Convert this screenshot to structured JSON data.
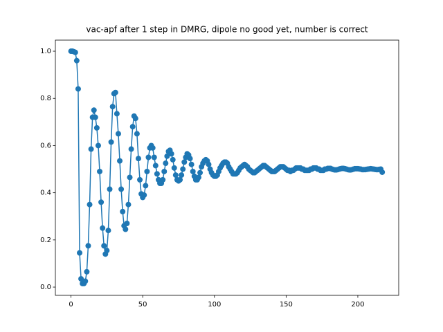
{
  "chart_data": {
    "type": "line",
    "title": "vac-apf after 1 step in DMRG, dipole no good yet, number is correct",
    "x": [
      0,
      1,
      2,
      3,
      4,
      5,
      6,
      7,
      8,
      9,
      10,
      11,
      12,
      13,
      14,
      15,
      16,
      17,
      18,
      19,
      20,
      21,
      22,
      23,
      24,
      25,
      26,
      27,
      28,
      29,
      30,
      31,
      32,
      33,
      34,
      35,
      36,
      37,
      38,
      39,
      40,
      41,
      42,
      43,
      44,
      45,
      46,
      47,
      48,
      49,
      50,
      51,
      52,
      53,
      54,
      55,
      56,
      57,
      58,
      59,
      60,
      61,
      62,
      63,
      64,
      65,
      66,
      67,
      68,
      69,
      70,
      71,
      72,
      73,
      74,
      75,
      76,
      77,
      78,
      79,
      80,
      81,
      82,
      83,
      84,
      85,
      86,
      87,
      88,
      89,
      90,
      91,
      92,
      93,
      94,
      95,
      96,
      97,
      98,
      99,
      100,
      101,
      102,
      103,
      104,
      105,
      106,
      107,
      108,
      109,
      110,
      111,
      112,
      113,
      114,
      115,
      116,
      117,
      118,
      119,
      120,
      121,
      122,
      123,
      124,
      125,
      126,
      127,
      128,
      129,
      130,
      131,
      132,
      133,
      134,
      135,
      136,
      137,
      138,
      139,
      140,
      141,
      142,
      143,
      144,
      145,
      146,
      147,
      148,
      149,
      150,
      151,
      152,
      153,
      154,
      155,
      156,
      157,
      158,
      159,
      160,
      161,
      162,
      163,
      164,
      165,
      166,
      167,
      168,
      169,
      170,
      171,
      172,
      173,
      174,
      175,
      176,
      177,
      178,
      179,
      180,
      181,
      182,
      183,
      184,
      185,
      186,
      187,
      188,
      189,
      190,
      191,
      192,
      193,
      194,
      195,
      196,
      197,
      198,
      199,
      200,
      201,
      202,
      203,
      204,
      205,
      206,
      207,
      208,
      209,
      210,
      211,
      212,
      213,
      214,
      215,
      216,
      217
    ],
    "values": [
      1.0,
      1.0,
      0.998,
      0.995,
      0.96,
      0.84,
      0.145,
      0.035,
      0.015,
      0.015,
      0.025,
      0.065,
      0.175,
      0.35,
      0.585,
      0.72,
      0.75,
      0.72,
      0.675,
      0.6,
      0.49,
      0.36,
      0.25,
      0.175,
      0.14,
      0.155,
      0.24,
      0.415,
      0.615,
      0.765,
      0.82,
      0.825,
      0.735,
      0.65,
      0.535,
      0.415,
      0.32,
      0.26,
      0.245,
      0.27,
      0.35,
      0.465,
      0.585,
      0.68,
      0.725,
      0.715,
      0.65,
      0.545,
      0.455,
      0.395,
      0.38,
      0.39,
      0.43,
      0.49,
      0.55,
      0.59,
      0.6,
      0.59,
      0.55,
      0.515,
      0.48,
      0.455,
      0.44,
      0.44,
      0.455,
      0.49,
      0.525,
      0.555,
      0.575,
      0.58,
      0.565,
      0.54,
      0.505,
      0.475,
      0.455,
      0.45,
      0.455,
      0.475,
      0.5,
      0.53,
      0.55,
      0.565,
      0.56,
      0.545,
      0.52,
      0.49,
      0.47,
      0.455,
      0.455,
      0.465,
      0.485,
      0.51,
      0.525,
      0.535,
      0.54,
      0.535,
      0.52,
      0.5,
      0.485,
      0.475,
      0.47,
      0.47,
      0.475,
      0.49,
      0.505,
      0.515,
      0.525,
      0.53,
      0.53,
      0.525,
      0.51,
      0.5,
      0.49,
      0.48,
      0.48,
      0.48,
      0.485,
      0.495,
      0.505,
      0.51,
      0.515,
      0.52,
      0.515,
      0.51,
      0.5,
      0.495,
      0.49,
      0.485,
      0.485,
      0.49,
      0.495,
      0.5,
      0.505,
      0.51,
      0.515,
      0.515,
      0.51,
      0.505,
      0.5,
      0.495,
      0.49,
      0.49,
      0.49,
      0.495,
      0.5,
      0.505,
      0.51,
      0.51,
      0.51,
      0.505,
      0.5,
      0.495,
      0.495,
      0.49,
      0.495,
      0.495,
      0.5,
      0.505,
      0.505,
      0.505,
      0.505,
      0.5,
      0.5,
      0.495,
      0.495,
      0.495,
      0.495,
      0.5,
      0.5,
      0.505,
      0.505,
      0.505,
      0.5,
      0.5,
      0.495,
      0.495,
      0.495,
      0.5,
      0.5,
      0.503,
      0.503,
      0.503,
      0.5,
      0.498,
      0.497,
      0.497,
      0.498,
      0.5,
      0.502,
      0.503,
      0.503,
      0.502,
      0.5,
      0.498,
      0.497,
      0.497,
      0.498,
      0.5,
      0.502,
      0.502,
      0.502,
      0.501,
      0.5,
      0.498,
      0.498,
      0.498,
      0.499,
      0.5,
      0.501,
      0.502,
      0.501,
      0.5,
      0.499,
      0.498,
      0.498,
      0.499,
      0.5,
      0.487
    ],
    "color": "#1f77b4",
    "xlim": [
      -10.9,
      228.5
    ],
    "xticks": [
      0,
      50,
      100,
      150,
      200
    ],
    "ylim": [
      -0.035,
      1.047
    ],
    "yticks": [
      {
        "value": 0,
        "label": "0.0"
      },
      0.2,
      0.4,
      0.6,
      0.8,
      {
        "value": 1,
        "label": "1.0"
      }
    ],
    "grid": false
  }
}
